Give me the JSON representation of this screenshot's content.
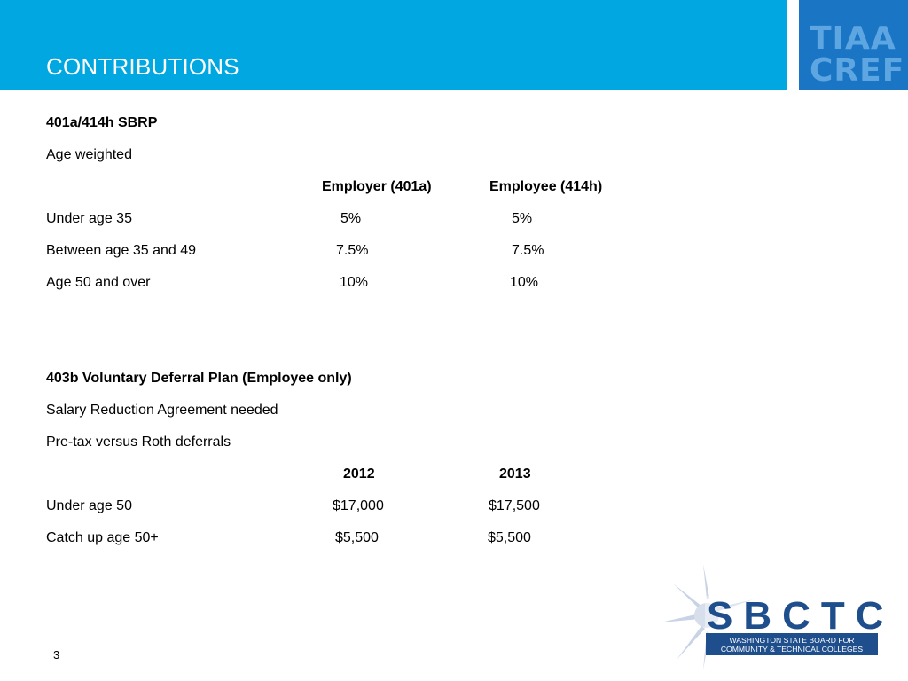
{
  "header": {
    "title": "CONTRIBUTIONS",
    "band_color": "#00a7e1",
    "logo": {
      "line1": "TIAA",
      "line2": "CREF",
      "color": "#1a75c4"
    }
  },
  "sbrp": {
    "heading": "401a/414h SBRP",
    "subheading": "Age weighted",
    "columns": [
      "Employer (401a)",
      "Employee (414h)"
    ],
    "rows": [
      {
        "label": "Under age 35",
        "employer": "5%",
        "employee": "5%"
      },
      {
        "label": "Between age 35 and 49",
        "employer": "7.5%",
        "employee": "7.5%"
      },
      {
        "label": "Age 50 and over",
        "employer": "10%",
        "employee": "10%"
      }
    ]
  },
  "voluntary": {
    "heading": "403b Voluntary Deferral Plan (Employee only)",
    "line1": "Salary Reduction Agreement needed",
    "line2": "Pre-tax versus Roth deferrals",
    "columns": [
      "2012",
      "2013"
    ],
    "rows": [
      {
        "label": "Under age 50",
        "y2012": "$17,000",
        "y2013": "$17,500"
      },
      {
        "label": "Catch up age 50+",
        "y2012": "$5,500",
        "y2013": "$5,500"
      }
    ]
  },
  "footer": {
    "page_number": "3",
    "sbctc": {
      "name": "SBCTC",
      "line1": "WASHINGTON STATE BOARD FOR",
      "line2": "COMMUNITY & TECHNICAL COLLEGES",
      "color": "#1f4e8c"
    }
  }
}
